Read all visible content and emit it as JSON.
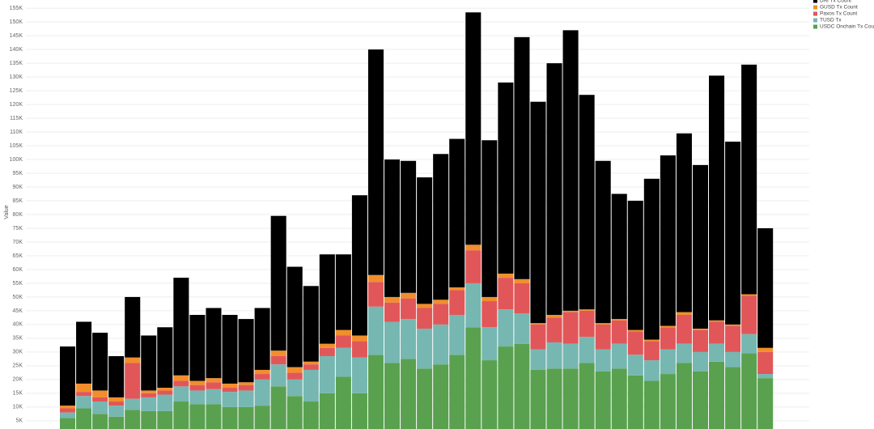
{
  "chart_data": {
    "type": "stacked_bar",
    "y_label": "Value",
    "categories": [
      null,
      null,
      null,
      null,
      null,
      null,
      null,
      null,
      null,
      null,
      null,
      null,
      null,
      null,
      null,
      null,
      null,
      null,
      null,
      null,
      null,
      null,
      null,
      null,
      null,
      null,
      null,
      null,
      null,
      null,
      null,
      null,
      null,
      null,
      null,
      null,
      null,
      null,
      null,
      null,
      null,
      null,
      null,
      null
    ],
    "series": [
      {
        "name": "USDC Onchain Tx Count",
        "color": "#59a14f",
        "values": [
          6000,
          9500,
          7500,
          6500,
          9000,
          8500,
          8500,
          12000,
          11000,
          11000,
          10000,
          10000,
          10500,
          17500,
          14000,
          12000,
          15000,
          21000,
          15000,
          29000,
          26000,
          27500,
          24000,
          25500,
          29000,
          39000,
          27000,
          32000,
          33000,
          23500,
          24000,
          24000,
          26000,
          23000,
          24000,
          21500,
          19500,
          22000,
          26000,
          23000,
          26500,
          24500,
          29500,
          20500
        ]
      },
      {
        "name": "TUSD Tx",
        "color": "#76b7b2",
        "values": [
          2000,
          4500,
          4500,
          4000,
          4000,
          5000,
          6000,
          5500,
          5000,
          5500,
          5500,
          6000,
          9500,
          8000,
          6000,
          11500,
          13500,
          10500,
          13000,
          17500,
          15000,
          14500,
          14500,
          14500,
          14500,
          16000,
          12000,
          13500,
          11000,
          7500,
          9500,
          9000,
          9500,
          8000,
          9000,
          7500,
          7500,
          9000,
          7000,
          7000,
          6500,
          5500,
          7000,
          1500
        ]
      },
      {
        "name": "Paxos Tx Count",
        "color": "#e15759",
        "values": [
          1500,
          1500,
          1500,
          1500,
          13000,
          1500,
          1500,
          2000,
          2000,
          2500,
          1500,
          2000,
          2000,
          3000,
          2500,
          2000,
          3000,
          4500,
          6000,
          9000,
          7000,
          7500,
          7500,
          7500,
          9000,
          12000,
          9500,
          11500,
          11000,
          9000,
          9000,
          11500,
          9500,
          9000,
          8500,
          8500,
          7000,
          8000,
          10500,
          8000,
          8000,
          9500,
          14000,
          8000
        ]
      },
      {
        "name": "GUSD Tx Count",
        "color": "#f28e2b",
        "values": [
          1000,
          3000,
          2500,
          1500,
          2000,
          1000,
          1000,
          2000,
          1500,
          1500,
          1500,
          1000,
          1500,
          2000,
          2000,
          1000,
          1500,
          2000,
          2000,
          2500,
          2000,
          2000,
          1500,
          1500,
          1000,
          2000,
          1500,
          1500,
          1500,
          500,
          1000,
          500,
          500,
          500,
          500,
          500,
          500,
          500,
          1000,
          500,
          500,
          500,
          500,
          1500
        ]
      },
      {
        "name": "DAI Tx Count",
        "color": "#000000",
        "values": [
          21500,
          22500,
          21000,
          15000,
          22000,
          20000,
          22000,
          35500,
          24000,
          25500,
          25000,
          23000,
          22500,
          49000,
          36500,
          27500,
          32500,
          27500,
          51000,
          82000,
          50000,
          48000,
          46000,
          53000,
          54000,
          84500,
          57000,
          69500,
          88000,
          80500,
          91500,
          102000,
          78000,
          59000,
          45500,
          47000,
          58500,
          62000,
          65000,
          59500,
          89000,
          66500,
          83500,
          43500
        ]
      }
    ],
    "ylim": [
      2000,
      158000
    ],
    "yticks": [
      {
        "value": 5000,
        "label": "5K"
      },
      {
        "value": 10000,
        "label": "10K"
      },
      {
        "value": 15000,
        "label": "15K"
      },
      {
        "value": 20000,
        "label": "20K"
      },
      {
        "value": 25000,
        "label": "25K"
      },
      {
        "value": 30000,
        "label": "30K"
      },
      {
        "value": 35000,
        "label": "35K"
      },
      {
        "value": 40000,
        "label": "40K"
      },
      {
        "value": 45000,
        "label": "45K"
      },
      {
        "value": 50000,
        "label": "50K"
      },
      {
        "value": 55000,
        "label": "55K"
      },
      {
        "value": 60000,
        "label": "60K"
      },
      {
        "value": 65000,
        "label": "65K"
      },
      {
        "value": 70000,
        "label": "70K"
      },
      {
        "value": 75000,
        "label": "75K"
      },
      {
        "value": 80000,
        "label": "80K"
      },
      {
        "value": 85000,
        "label": "85K"
      },
      {
        "value": 90000,
        "label": "90K"
      },
      {
        "value": 95000,
        "label": "95K"
      },
      {
        "value": 100000,
        "label": "100K"
      },
      {
        "value": 105000,
        "label": "105K"
      },
      {
        "value": 110000,
        "label": "110K"
      },
      {
        "value": 115000,
        "label": "115K"
      },
      {
        "value": 120000,
        "label": "120K"
      },
      {
        "value": 125000,
        "label": "125K"
      },
      {
        "value": 130000,
        "label": "130K"
      },
      {
        "value": 135000,
        "label": "135K"
      },
      {
        "value": 140000,
        "label": "140K"
      },
      {
        "value": 145000,
        "label": "145K"
      },
      {
        "value": 150000,
        "label": "150K"
      },
      {
        "value": 155000,
        "label": "155K"
      }
    ],
    "grid": true
  }
}
